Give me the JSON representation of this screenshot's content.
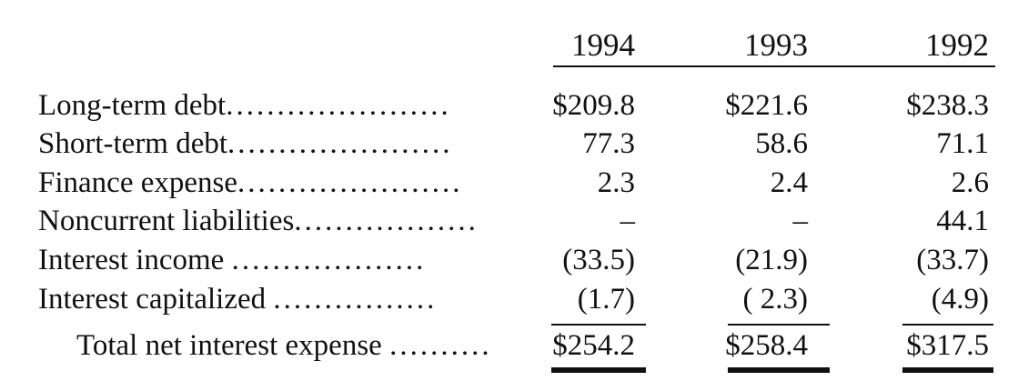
{
  "columns": [
    "1994",
    "1993",
    "1992"
  ],
  "rows": [
    {
      "label": "Long-term debt",
      "dots": "......................",
      "v1994": "$209.8",
      "v1993": "$221.6",
      "v1992": "$238.3"
    },
    {
      "label": "Short-term debt",
      "dots": "......................",
      "v1994": "77.3",
      "v1993": "58.6",
      "v1992": "71.1"
    },
    {
      "label": "Finance expense",
      "dots": "......................",
      "v1994": "2.3",
      "v1993": "2.4",
      "v1992": "2.6"
    },
    {
      "label": "Noncurrent liabilities",
      "dots": "..................",
      "v1994": "–",
      "v1993": "–",
      "v1992": "44.1"
    },
    {
      "label": "Interest income ",
      "dots": "...................",
      "v1994": "(33.5)",
      "v1993": "(21.9)",
      "v1992": "(33.7)"
    },
    {
      "label": "Interest capitalized ",
      "dots": "................",
      "v1994": "(1.7)",
      "v1993": "( 2.3)",
      "v1992": "(4.9)"
    }
  ],
  "total": {
    "label": "Total net interest expense ",
    "dots": "..........",
    "v1994": "$254.2",
    "v1993": "$258.4",
    "v1992": "$317.5"
  }
}
